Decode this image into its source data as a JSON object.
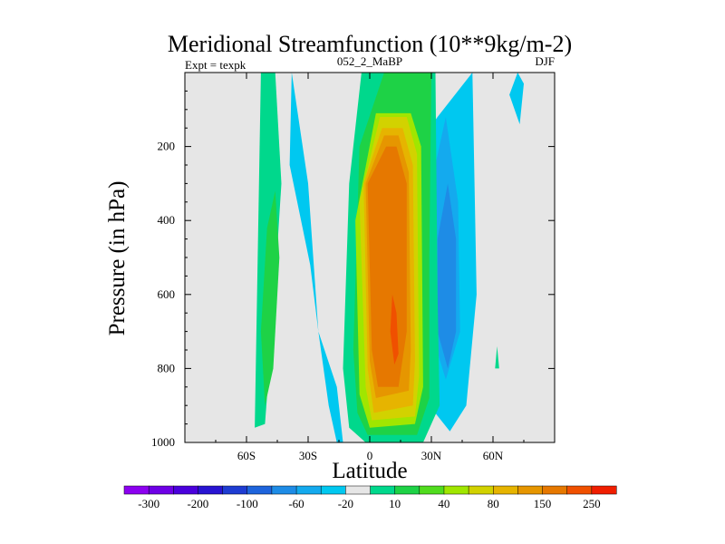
{
  "chart_data": {
    "type": "heatmap",
    "subtype": "filled-contour",
    "title": "Meridional Streamfunction (10**9kg/m-2)",
    "subtitle_left": "Expt = texpk",
    "subtitle_center": "052_2_MaBP",
    "subtitle_right": "DJF",
    "xlabel": "Latitude",
    "ylabel": "Pressure (in hPa)",
    "xlim": [
      -90,
      90
    ],
    "ylim": [
      1000,
      0
    ],
    "x_ticks": [
      {
        "value": -60,
        "label": "60S"
      },
      {
        "value": -30,
        "label": "30S"
      },
      {
        "value": 0,
        "label": "0"
      },
      {
        "value": 30,
        "label": "30N"
      },
      {
        "value": 60,
        "label": "60N"
      }
    ],
    "y_ticks": [
      {
        "value": 200,
        "label": "200"
      },
      {
        "value": 400,
        "label": "400"
      },
      {
        "value": 600,
        "label": "600"
      },
      {
        "value": 800,
        "label": "800"
      },
      {
        "value": 1000,
        "label": "1000"
      }
    ],
    "colorbar": {
      "colors": [
        "#8c00f0",
        "#6e00e6",
        "#4a00dc",
        "#2814d2",
        "#1e3cd2",
        "#1e64dc",
        "#1e8ce6",
        "#14aaee",
        "#00c8f0",
        "#e6e6e6",
        "#00d88c",
        "#1ed246",
        "#50dc1e",
        "#a0e600",
        "#d2d200",
        "#e6b400",
        "#e69600",
        "#e67800",
        "#f05000",
        "#f01e00"
      ],
      "labels": [
        "-300",
        "-200",
        "-100",
        "-60",
        "-20",
        "10",
        "40",
        "80",
        "150",
        "250"
      ]
    },
    "regions": [
      {
        "level": 10,
        "color": "#00d88c",
        "lat": [
          -46,
          -43,
          -47,
          -51,
          -56,
          -53,
          -46
        ],
        "p": [
          0,
          300,
          650,
          950,
          960,
          0,
          0
        ]
      },
      {
        "level": 40,
        "color": "#1ed246",
        "lat": [
          -46,
          -44,
          -47,
          -51,
          -53,
          -50,
          -46
        ],
        "p": [
          320,
          500,
          800,
          900,
          700,
          420,
          320
        ]
      },
      {
        "level": -10,
        "color": "#00c8f0",
        "lat": [
          -38,
          -39,
          -29,
          -25,
          -16,
          -13,
          -16,
          -20,
          -25,
          -30,
          -38
        ],
        "p": [
          0,
          250,
          520,
          700,
          850,
          1000,
          1000,
          900,
          700,
          300,
          0
        ]
      },
      {
        "level": -10,
        "color": "#00c8f0",
        "lat": [
          50,
          33,
          23,
          25,
          29,
          39,
          47,
          52,
          50
        ],
        "p": [
          0,
          120,
          200,
          600,
          900,
          970,
          900,
          600,
          0
        ]
      },
      {
        "level": -20,
        "color": "#14aaee",
        "lat": [
          37,
          30,
          30,
          37,
          44,
          43,
          37
        ],
        "p": [
          120,
          300,
          700,
          830,
          700,
          350,
          120
        ]
      },
      {
        "level": -60,
        "color": "#1e8ce6",
        "lat": [
          38,
          33,
          33,
          38,
          42,
          42,
          38
        ],
        "p": [
          300,
          450,
          700,
          800,
          700,
          450,
          300
        ]
      },
      {
        "level": -10,
        "color": "#00c8f0",
        "lat": [
          72,
          68,
          73,
          75,
          72
        ],
        "p": [
          0,
          60,
          140,
          30,
          0
        ]
      },
      {
        "level": 10,
        "color": "#00d88c",
        "lat": [
          62,
          61,
          63,
          62
        ],
        "p": [
          740,
          800,
          800,
          740
        ]
      },
      {
        "level": 10,
        "color": "#00d88c",
        "lat": [
          -4,
          -10,
          -13,
          -10,
          -2,
          26,
          34,
          33,
          32,
          22,
          -4
        ],
        "p": [
          0,
          300,
          800,
          960,
          1000,
          1000,
          900,
          600,
          0,
          0,
          0
        ]
      },
      {
        "level": 40,
        "color": "#1ed246",
        "lat": [
          7,
          -5,
          -8,
          -6,
          -1,
          23,
          29,
          29,
          30,
          7
        ],
        "p": [
          0,
          200,
          750,
          920,
          980,
          980,
          880,
          500,
          0,
          0
        ]
      },
      {
        "level": 80,
        "color": "#a0e600",
        "lat": [
          3,
          -7,
          -5,
          0,
          22,
          26,
          25,
          20,
          3
        ],
        "p": [
          110,
          400,
          870,
          960,
          950,
          850,
          200,
          110,
          110
        ]
      },
      {
        "level": 150,
        "color": "#d2d200",
        "lat": [
          5,
          -5,
          -2,
          1,
          22,
          24,
          23,
          18,
          5
        ],
        "p": [
          120,
          350,
          850,
          940,
          930,
          820,
          220,
          120,
          120
        ]
      },
      {
        "level": 250,
        "color": "#e6b400",
        "lat": [
          6,
          -3,
          -1,
          2,
          21,
          22,
          21,
          16,
          6
        ],
        "p": [
          150,
          300,
          800,
          920,
          900,
          780,
          250,
          150,
          150
        ]
      },
      {
        "level": 350,
        "color": "#e69600",
        "lat": [
          7,
          -2,
          0,
          3,
          19,
          20,
          19,
          14,
          7
        ],
        "p": [
          170,
          300,
          780,
          880,
          860,
          750,
          270,
          170,
          170
        ]
      },
      {
        "level": 500,
        "color": "#e67800",
        "lat": [
          8,
          -1,
          1,
          4,
          14,
          18,
          18,
          13,
          8
        ],
        "p": [
          200,
          300,
          750,
          850,
          850,
          700,
          300,
          200,
          200
        ]
      },
      {
        "level": 700,
        "color": "#f05000",
        "lat": [
          11,
          10,
          12,
          14,
          13,
          11
        ],
        "p": [
          600,
          700,
          790,
          760,
          650,
          600
        ]
      }
    ]
  }
}
